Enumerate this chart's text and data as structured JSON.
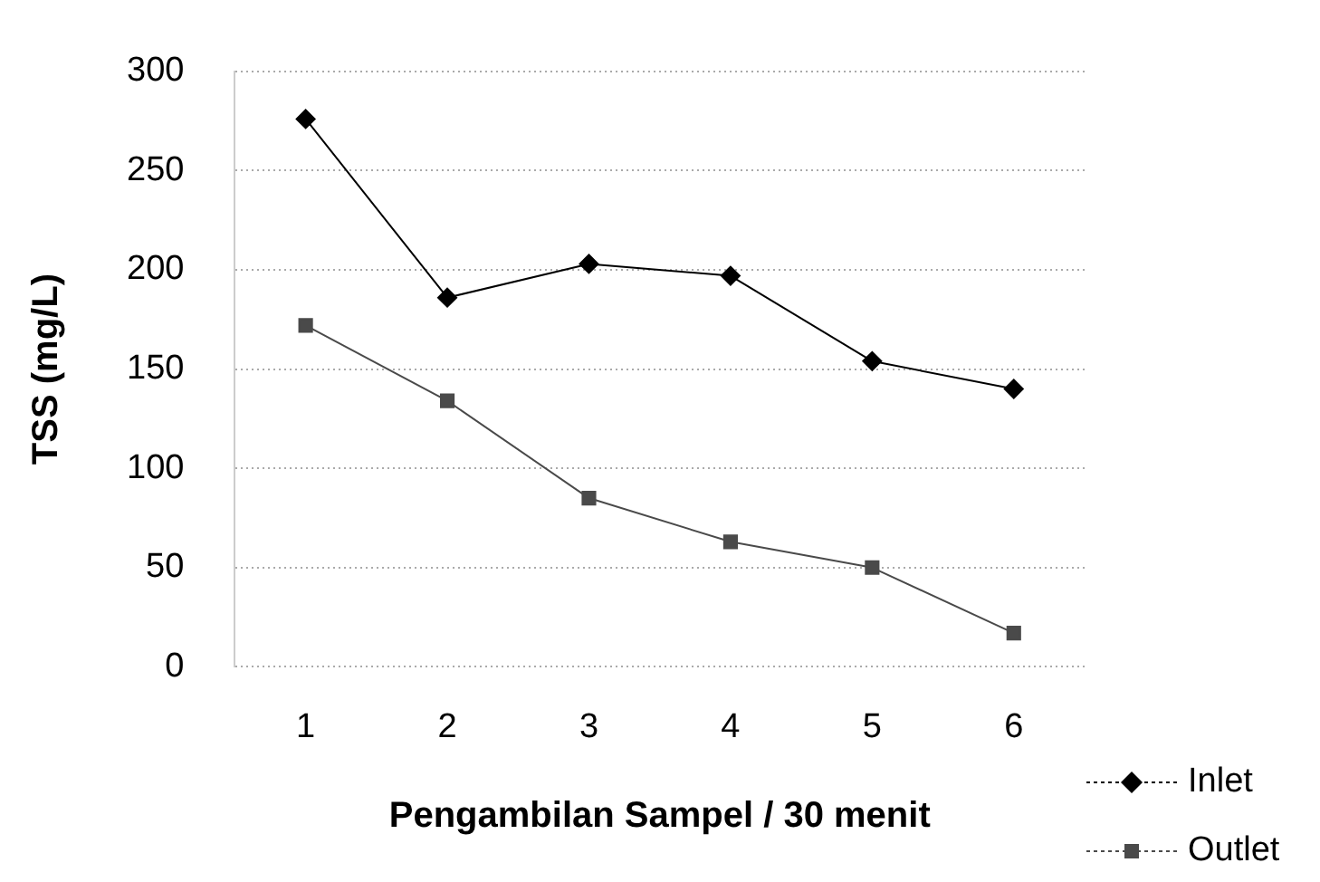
{
  "chart_data": {
    "type": "line",
    "xlabel": "Pengambilan Sampel / 30 menit",
    "ylabel": "TSS (mg/L)",
    "categories": [
      "1",
      "2",
      "3",
      "4",
      "5",
      "6"
    ],
    "series": [
      {
        "name": "Inlet",
        "color": "#000000",
        "marker": "diamond",
        "values": [
          276,
          186,
          203,
          197,
          154,
          140
        ]
      },
      {
        "name": "Outlet",
        "color": "#4a4a4a",
        "marker": "square",
        "values": [
          172,
          134,
          85,
          63,
          50,
          17
        ]
      }
    ],
    "ylim": [
      0,
      300
    ],
    "yticks": [
      0,
      50,
      100,
      150,
      200,
      250,
      300
    ],
    "grid": "y",
    "legend": "bottom right",
    "line_style": "solid"
  }
}
